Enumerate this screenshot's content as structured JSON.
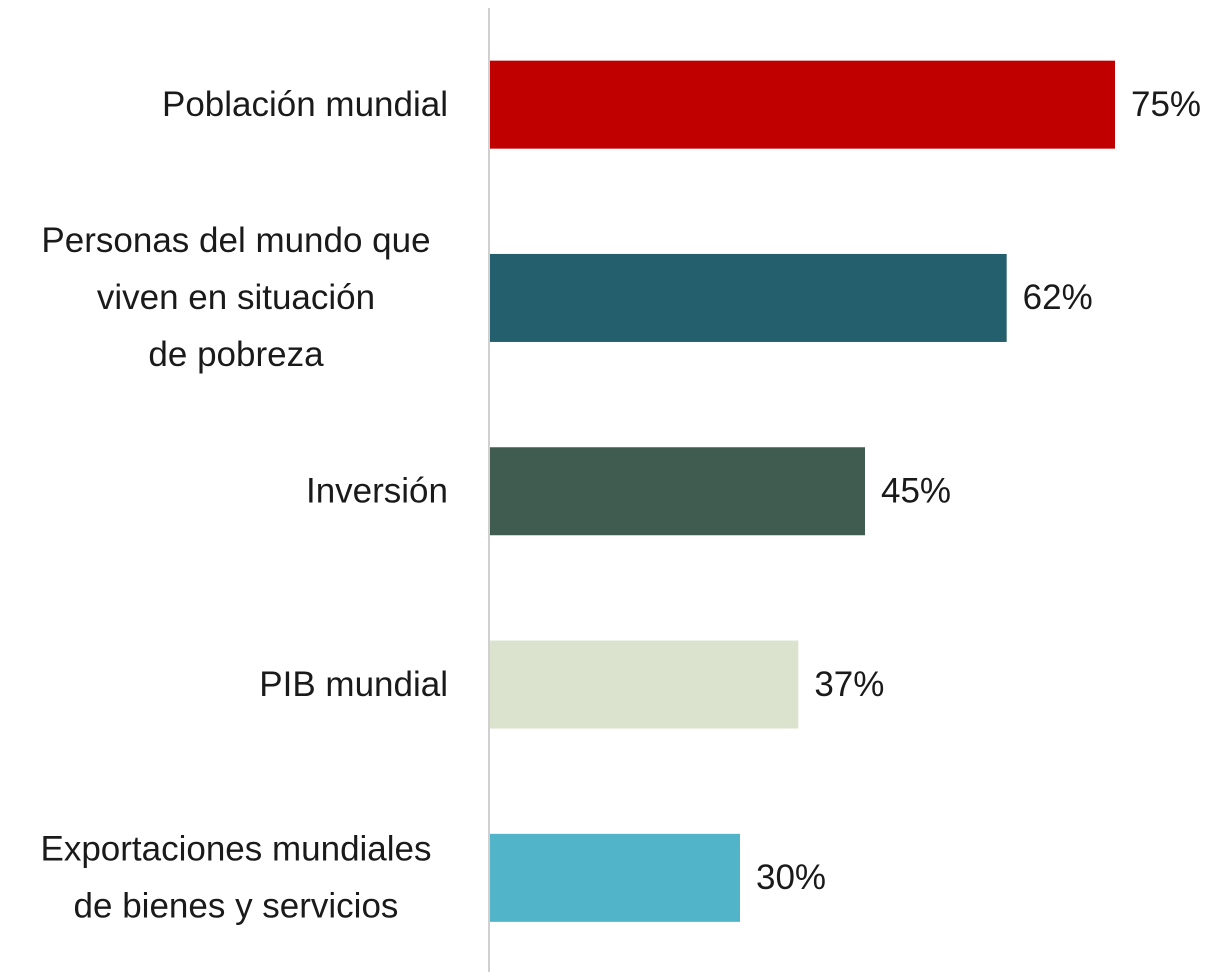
{
  "chart_data": {
    "type": "bar",
    "orientation": "horizontal",
    "categories": [
      [
        "Población mundial"
      ],
      [
        "Personas del mundo que",
        "viven en situación",
        "de pobreza"
      ],
      [
        "Inversión"
      ],
      [
        "PIB mundial"
      ],
      [
        "Exportaciones mundiales",
        "de bienes y servicios"
      ]
    ],
    "values": [
      75,
      62,
      45,
      37,
      30
    ],
    "value_labels": [
      "75%",
      "62%",
      "45%",
      "37%",
      "30%"
    ],
    "colors": [
      "#c00000",
      "#235f6c",
      "#405b50",
      "#dbe3cf",
      "#52b4c8"
    ]
  }
}
